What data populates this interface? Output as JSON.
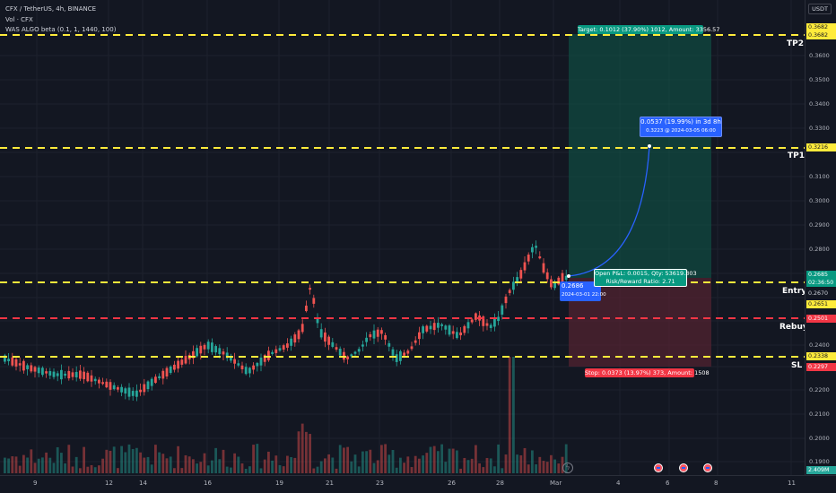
{
  "legend": {
    "symbol": "CFX / TetherUS, 4h, BINANCE",
    "vol": "Vol · CFX",
    "algo": "WAS ALGO beta (0.1, 1, 1440, 100)"
  },
  "currency_button": "USDT",
  "price_ticks": [
    "0.3600",
    "0.3500",
    "0.3400",
    "0.3300",
    "0.3100",
    "0.3000",
    "0.2900",
    "0.2800",
    "0.2400",
    "0.2300",
    "0.2200",
    "0.2100",
    "0.2000",
    "0.1900"
  ],
  "price_tags": {
    "tp2_a": "0.3682",
    "tp2_b": "0.3682",
    "tp1": "0.3216",
    "current": "0.2685",
    "countdown": "02:36:50",
    "entry_a": "0.2670",
    "entry_b": "0.2651",
    "rebuy": "0.2501",
    "sl_a": "0.2338",
    "sl_b": "0.2297",
    "volume": "2.409M"
  },
  "levels": {
    "tp2": "TP2",
    "tp1": "TP1",
    "entry": "Entry",
    "rebuy": "Rebuy",
    "sl": "SL"
  },
  "annotations": {
    "target": "Target: 0.1012 (37.90%) 1012, Amount: 3356.57",
    "projection_line1": "0.0537 (19.99%) in 3d 8h",
    "projection_line2": "0.3223 @ 2024-03-05  06:00",
    "entry_price": "0.2686",
    "entry_time": "2024-03-01 22:00",
    "open_pl_line1": "Open P&L: 0.0015, Qty: 53619.303",
    "open_pl_line2": "Risk/Reward Ratio: 2.71",
    "stop": "Stop: 0.0373 (13.97%) 373, Amount: 1508"
  },
  "time_labels": [
    "9",
    "12",
    "14",
    "16",
    "19",
    "21",
    "23",
    "26",
    "28",
    "Mar",
    "4",
    "6",
    "8",
    "11"
  ],
  "colors": {
    "background": "#131722",
    "up": "#26a69a",
    "down": "#ef5350",
    "level_yellow": "#ffeb3b",
    "level_red": "#f23645",
    "target_zone": "#0f5b4b",
    "stop_zone": "#5b2332",
    "projection": "#2962ff"
  },
  "icons": [
    "event-earnings-icon",
    "lightning-icon"
  ]
}
